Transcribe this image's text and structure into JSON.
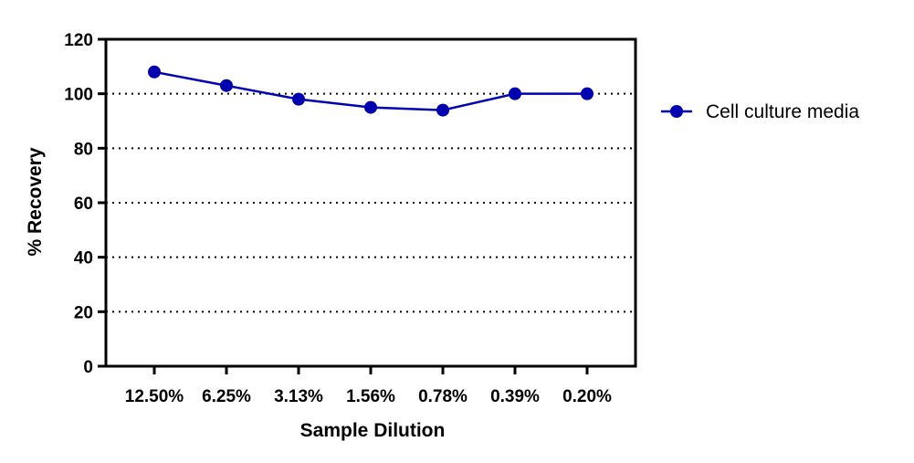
{
  "chart_data": {
    "type": "line",
    "categories": [
      "12.50%",
      "6.25%",
      "3.13%",
      "1.56%",
      "0.78%",
      "0.39%",
      "0.20%"
    ],
    "series": [
      {
        "name": "Cell culture media",
        "values": [
          108,
          103,
          98,
          95,
          94,
          100,
          100
        ],
        "color": "#0000b3"
      }
    ],
    "xlabel": "Sample Dilution",
    "ylabel": "% Recovery",
    "ylim": [
      0,
      120
    ],
    "yticks": [
      "0",
      "20",
      "40",
      "60",
      "80",
      "100",
      "120"
    ],
    "grid": "horizontal dotted",
    "legend_position": "right"
  }
}
